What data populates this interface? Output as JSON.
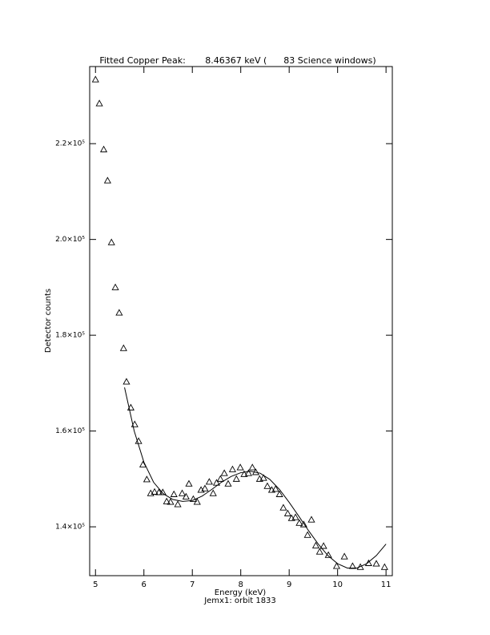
{
  "chart_data": {
    "type": "scatter",
    "title": "Fitted Copper Peak:       8.46367 keV (      83 Science windows)",
    "x_label": "Energy (keV)",
    "subtitle": "Jemx1: orbit 1833",
    "y_label": "Detector counts",
    "xlim": [
      4.88,
      11.13
    ],
    "ylim": [
      129800,
      236100
    ],
    "xticks": [
      5,
      6,
      7,
      8,
      9,
      10,
      11
    ],
    "yticks": [
      {
        "value": 140000,
        "label": "1.4×10⁵"
      },
      {
        "value": 160000,
        "label": "1.6×10⁵"
      },
      {
        "value": 180000,
        "label": "1.8×10⁵"
      },
      {
        "value": 200000,
        "label": "2.0×10⁵"
      },
      {
        "value": 220000,
        "label": "2.2×10⁵"
      }
    ],
    "series": [
      {
        "marker": "triangle",
        "color": "#000000",
        "x": [
          5.0,
          5.08,
          5.17,
          5.25,
          5.33,
          5.41,
          5.49,
          5.58,
          5.64,
          5.73,
          5.81,
          5.89,
          5.98,
          6.06,
          6.14,
          6.22,
          6.31,
          6.39,
          6.47,
          6.55,
          6.62,
          6.7,
          6.79,
          6.87,
          6.93,
          7.02,
          7.1,
          7.18,
          7.26,
          7.35,
          7.43,
          7.5,
          7.58,
          7.66,
          7.74,
          7.83,
          7.91,
          7.99,
          8.07,
          8.16,
          8.24,
          8.31,
          8.39,
          8.47,
          8.55,
          8.64,
          8.72,
          8.8,
          8.88,
          8.97,
          9.05,
          9.13,
          9.21,
          9.3,
          9.38,
          9.46,
          9.55,
          9.63,
          9.71,
          9.81,
          9.98,
          10.14,
          10.31,
          10.47,
          10.64,
          10.8,
          10.97
        ],
        "values": [
          233400,
          228400,
          218800,
          212300,
          199400,
          190000,
          184700,
          177300,
          170300,
          164900,
          161400,
          157900,
          153000,
          149900,
          147000,
          147300,
          147200,
          147200,
          145300,
          145200,
          146800,
          144700,
          147000,
          146300,
          149000,
          145800,
          145200,
          147700,
          148000,
          149400,
          147000,
          149200,
          150000,
          151200,
          149000,
          152000,
          150000,
          152400,
          151000,
          151200,
          152400,
          151400,
          150000,
          150200,
          148500,
          147700,
          147900,
          146800,
          144000,
          142800,
          141800,
          142000,
          140800,
          140500,
          138300,
          141500,
          136100,
          134800,
          136000,
          134100,
          131800,
          133800,
          131800,
          131600,
          132400,
          132300,
          131600
        ]
      },
      {
        "marker": "line",
        "color": "#000000",
        "x": [
          5.6,
          5.8,
          6.0,
          6.2,
          6.4,
          6.6,
          6.8,
          7.0,
          7.2,
          7.4,
          7.6,
          7.8,
          8.0,
          8.2,
          8.4,
          8.6,
          8.8,
          9.0,
          9.2,
          9.4,
          9.6,
          9.8,
          10.0,
          10.2,
          10.4,
          10.6,
          10.8,
          11.0
        ],
        "values": [
          169100,
          160000,
          153500,
          149300,
          146900,
          145700,
          145300,
          145500,
          146400,
          147800,
          149300,
          150500,
          151300,
          151600,
          151200,
          149900,
          147800,
          145100,
          142200,
          139200,
          136400,
          134000,
          132300,
          131400,
          131400,
          132300,
          134000,
          136400
        ]
      }
    ]
  }
}
